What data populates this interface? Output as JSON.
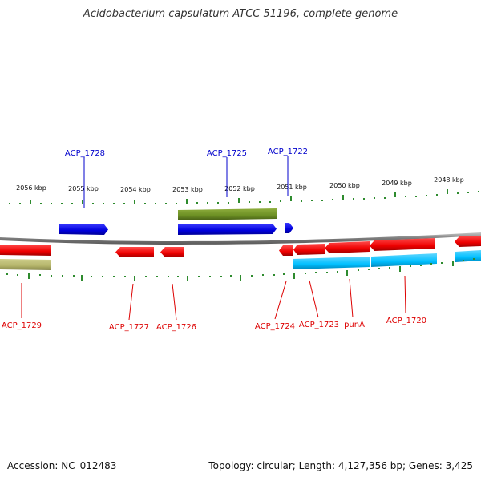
{
  "title": "Acidobacterium capsulatum ATCC 51196, complete genome",
  "footer": {
    "accession": "Accession: NC_012483",
    "stats": "Topology: circular; Length: 4,127,356 bp; Genes: 3,425"
  },
  "colors": {
    "forward_gene": "#0000ee",
    "reverse_gene": "#ee0000",
    "forward_cds_track": "#6b8e23",
    "reverse_cds_track": "#00bfff",
    "reverse_rna_track": "#b5b56b",
    "tick": "#228b22",
    "backbone": "#808080"
  },
  "scale_labels": [
    "2056 kbp",
    "2055 kbp",
    "2054 kbp",
    "2053 kbp",
    "2052 kbp",
    "2051 kbp",
    "2050 kbp",
    "2049 kbp",
    "2048 kbp"
  ],
  "upper_genes": [
    "ACP_1728",
    "ACP_1725",
    "ACP_1722"
  ],
  "lower_genes": [
    "ACP_1729",
    "ACP_1727",
    "ACP_1726",
    "ACP_1724",
    "ACP_1723",
    "punA",
    "ACP_1720"
  ]
}
